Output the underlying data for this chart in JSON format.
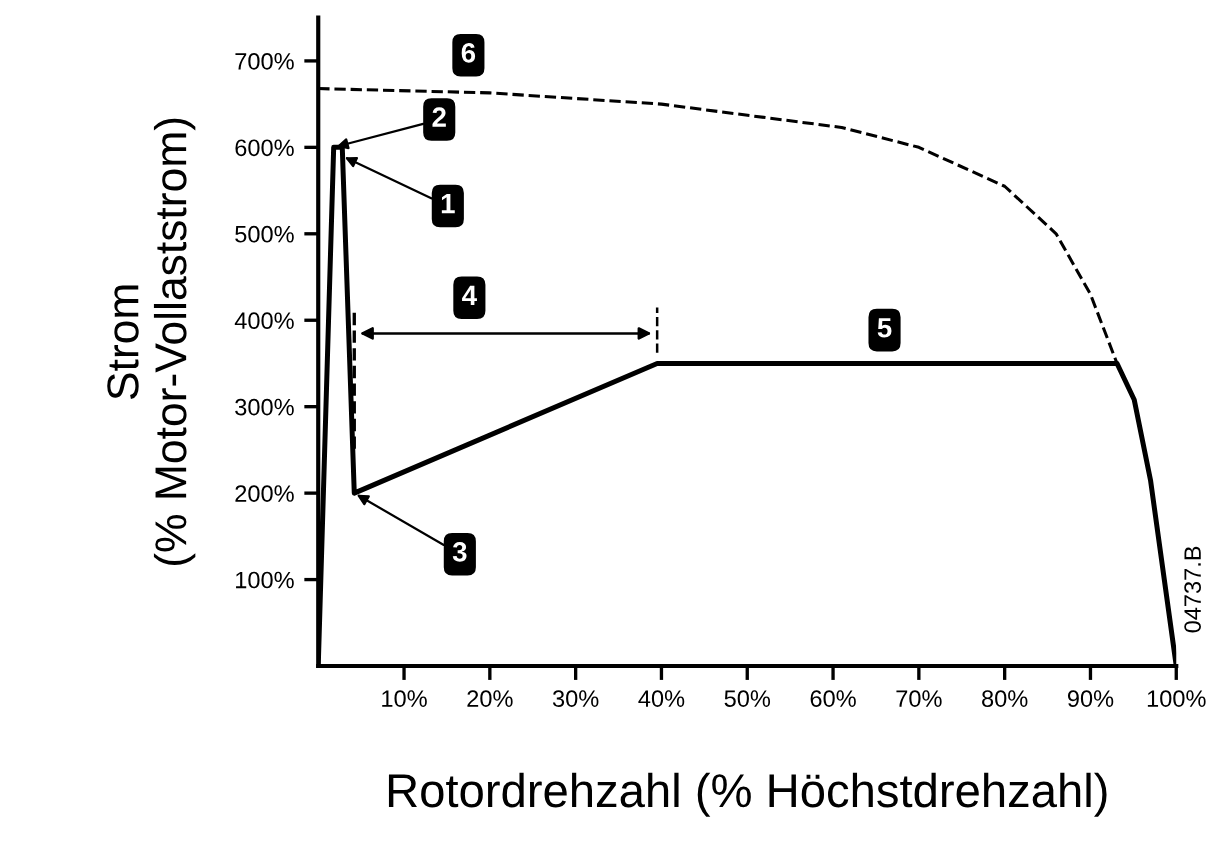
{
  "chart_data": {
    "type": "line",
    "xlabel": "Rotordrehzahl (% Höchstdrehzahl)",
    "ylabel": "Strom\n(% Motor-Vollaststrom)",
    "series": [
      {
        "color": "#000000",
        "line_style": "solid",
        "x": [
          0,
          1.8,
          2.8,
          4.2,
          39.5,
          93.1,
          95.1,
          97,
          100
        ],
        "values": [
          0,
          600,
          600,
          200,
          350,
          350,
          308,
          215,
          0
        ]
      },
      {
        "color": "#000000",
        "line_style": "dashed",
        "x": [
          0,
          20,
          40,
          61,
          70,
          80,
          86,
          90,
          93.1
        ],
        "values": [
          668,
          663,
          650,
          623,
          600,
          555,
          500,
          430,
          350
        ]
      }
    ],
    "xlim": [
      0,
      100
    ],
    "ylim": [
      0,
      750
    ],
    "xticks": [
      {
        "value": 10,
        "label": "10%"
      },
      {
        "value": 20,
        "label": "20%"
      },
      {
        "value": 30,
        "label": "30%"
      },
      {
        "value": 40,
        "label": "40%"
      },
      {
        "value": 50,
        "label": "50%"
      },
      {
        "value": 60,
        "label": "60%"
      },
      {
        "value": 70,
        "label": "70%"
      },
      {
        "value": 80,
        "label": "80%"
      },
      {
        "value": 90,
        "label": "90%"
      },
      {
        "value": 100,
        "label": "100%"
      }
    ],
    "yticks": [
      {
        "value": 100,
        "label": "100%"
      },
      {
        "value": 200,
        "label": "200%"
      },
      {
        "value": 300,
        "label": "300%"
      },
      {
        "value": 400,
        "label": "400%"
      },
      {
        "value": 500,
        "label": "500%"
      },
      {
        "value": 600,
        "label": "600%"
      },
      {
        "value": 700,
        "label": "700%"
      }
    ],
    "annotations": [
      "4",
      {
        "text": "1",
        "x": 2.8,
        "y": 590
      },
      {
        "text": "2",
        "x": 1.8,
        "y": 600
      },
      {
        "text": "3",
        "x": 4.2,
        "y": 200
      },
      {
        "text": "5",
        "x": 66,
        "y": 350
      },
      {
        "text": "6",
        "x": 17.5,
        "y": 668
      },
      "04737.B"
    ],
    "grid": false,
    "legend": false,
    "marker": "none"
  }
}
